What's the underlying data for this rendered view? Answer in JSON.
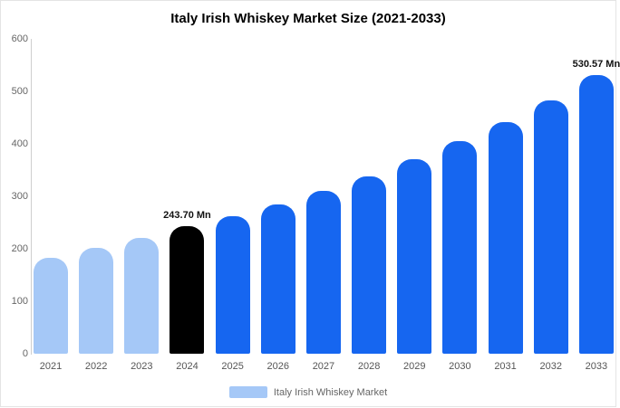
{
  "chart_data": {
    "type": "bar",
    "title": "Italy Irish Whiskey Market Size (2021-2033)",
    "categories": [
      "2021",
      "2022",
      "2023",
      "2024",
      "2025",
      "2026",
      "2027",
      "2028",
      "2029",
      "2030",
      "2031",
      "2032",
      "2033"
    ],
    "values": [
      182,
      201,
      220,
      243.7,
      262,
      285,
      310,
      338,
      370,
      405,
      441,
      482,
      530.57
    ],
    "data_labels": [
      "",
      "",
      "",
      "243.70 Mn",
      "",
      "",
      "",
      "",
      "",
      "",
      "",
      "",
      "530.57 Mn"
    ],
    "bar_colors": [
      "#a5c8f7",
      "#a5c8f7",
      "#a5c8f7",
      "#000000",
      "#1666f0",
      "#1666f0",
      "#1666f0",
      "#1666f0",
      "#1666f0",
      "#1666f0",
      "#1666f0",
      "#1666f0",
      "#1666f0"
    ],
    "ylim": [
      0,
      600
    ],
    "yticks": [
      0,
      100,
      200,
      300,
      400,
      500,
      600
    ],
    "xlabel": "",
    "ylabel": "",
    "grid": false,
    "legend_position": "bottom",
    "legend": [
      {
        "label": "Italy Irish Whiskey Market",
        "color": "#a5c8f7"
      }
    ],
    "colors": {
      "historical": "#a5c8f7",
      "base_year": "#000000",
      "forecast": "#1666f0"
    }
  }
}
